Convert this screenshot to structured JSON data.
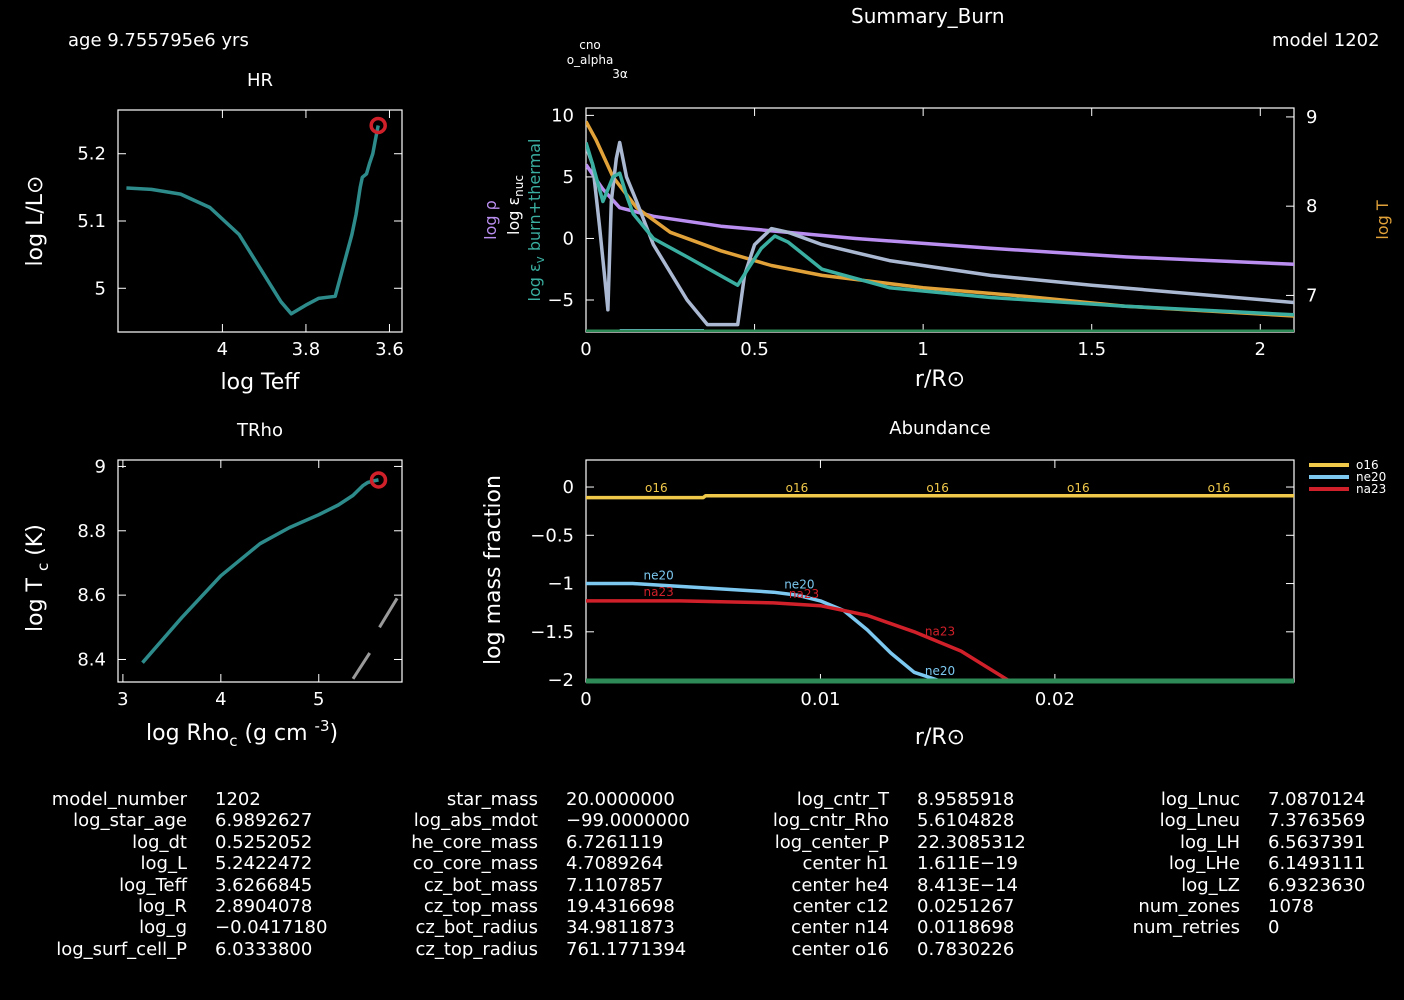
{
  "header": {
    "title": "Summary_Burn",
    "age_label": "age 9.755795e6 yrs",
    "model_label": "model 1202"
  },
  "colors": {
    "background": "#000000",
    "teal": "#2e8b8b",
    "teal_light": "#3aaea0",
    "violet": "#b98ef0",
    "orange": "#e2a23a",
    "lightblue": "#aab8d2",
    "skyblue": "#7cc8f0",
    "green": "#2e8b57",
    "red": "#d0202a",
    "yellow": "#f0c84a",
    "marker_red": "#d0202a",
    "grey": "#9a9a9a"
  },
  "chart_data": [
    {
      "id": "hr",
      "type": "line",
      "title": "HR",
      "xlabel": "log Teff",
      "ylabel": "log L/L⊙",
      "xlim": [
        4.25,
        3.57
      ],
      "ylim": [
        4.935,
        5.265
      ],
      "x_reversed": true,
      "xticks": [
        4,
        3.8,
        3.6
      ],
      "xtick_labels": [
        "4",
        "3.8",
        "3.6"
      ],
      "yticks": [
        5,
        5.1,
        5.2
      ],
      "ytick_labels": [
        "5",
        "5.1",
        "5.2"
      ],
      "series": [
        {
          "color": "#2e8b8b",
          "x": [
            4.23,
            4.17,
            4.1,
            4.03,
            3.96,
            3.9,
            3.86,
            3.835,
            3.8,
            3.77,
            3.73,
            3.69,
            3.68,
            3.67,
            3.665,
            3.655,
            3.648,
            3.64,
            3.634,
            3.627
          ],
          "y": [
            5.149,
            5.147,
            5.14,
            5.12,
            5.08,
            5.02,
            4.98,
            4.962,
            4.975,
            4.985,
            4.988,
            5.08,
            5.11,
            5.15,
            5.165,
            5.17,
            5.185,
            5.2,
            5.22,
            5.242
          ]
        }
      ],
      "marker": {
        "x": 3.627,
        "y": 5.242,
        "color": "#d0202a"
      }
    },
    {
      "id": "trho",
      "type": "line",
      "title": "TRho",
      "xlabel": "log Rho",
      "xlabel_sub": "c",
      "xlabel_units": "(g cm",
      "xlabel_sup": "-3",
      "xlabel_close": ")",
      "ylabel": "log T",
      "ylabel_sub": "c",
      "ylabel_units": "(K)",
      "xlim": [
        2.95,
        5.85
      ],
      "ylim": [
        8.33,
        9.02
      ],
      "xticks": [
        3,
        4,
        5
      ],
      "xtick_labels": [
        "3",
        "4",
        "5"
      ],
      "yticks": [
        8.4,
        8.6,
        8.8,
        9
      ],
      "ytick_labels": [
        "8.4",
        "8.6",
        "8.8",
        "9"
      ],
      "series": [
        {
          "color": "#2e8b8b",
          "x": [
            3.2,
            3.6,
            4.0,
            4.4,
            4.7,
            5.0,
            5.2,
            5.35,
            5.45,
            5.5,
            5.56,
            5.61
          ],
          "y": [
            8.39,
            8.53,
            8.66,
            8.76,
            8.81,
            8.85,
            8.88,
            8.91,
            8.94,
            8.95,
            8.955,
            8.958
          ]
        }
      ],
      "grey_lines": [
        {
          "x": [
            5.35,
            5.52
          ],
          "y": [
            8.34,
            8.42
          ]
        },
        {
          "x": [
            5.62,
            5.8
          ],
          "y": [
            8.5,
            8.59
          ]
        }
      ],
      "marker": {
        "x": 5.61,
        "y": 8.958,
        "color": "#d0202a"
      }
    },
    {
      "id": "summary_burn",
      "type": "line",
      "title": "Summary_Burn",
      "xlabel": "r/R⊙",
      "ylabel_left_rho": "log ρ",
      "ylabel_left_nuc": "log ε",
      "ylabel_left_nuc_sub": "nuc",
      "ylabel_left_eps": "log ε",
      "ylabel_left_eps_sub": "v",
      "ylabel_left_eps_tail": " burn+thermal",
      "ylabel_right": "log T",
      "xlim": [
        0,
        2.1
      ],
      "ylim": [
        -7.6,
        10.6
      ],
      "ylim_right": [
        6.59,
        9.1
      ],
      "xticks": [
        0,
        0.5,
        1,
        1.5,
        2
      ],
      "xtick_labels": [
        "0",
        "0.5",
        "1",
        "1.5",
        "2"
      ],
      "yticks": [
        -5,
        0,
        5,
        10
      ],
      "ytick_labels": [
        "−5",
        "0",
        "5",
        "10"
      ],
      "yticks_right": [
        7,
        8,
        9
      ],
      "ytick_right_labels": [
        "7",
        "8",
        "9"
      ],
      "legend_labels": [
        "cno",
        "o_alpha",
        "3α"
      ],
      "series": [
        {
          "name": "log ρ",
          "color": "#b98ef0",
          "x": [
            0,
            0.05,
            0.1,
            0.2,
            0.4,
            0.8,
            1.2,
            1.6,
            2.1
          ],
          "y": [
            6,
            4,
            2.5,
            1.8,
            1,
            0,
            -0.8,
            -1.5,
            -2.1
          ]
        },
        {
          "name": "log T",
          "color": "#e2a23a",
          "x": [
            0,
            0.03,
            0.08,
            0.15,
            0.25,
            0.4,
            0.55,
            0.7,
            1.0,
            1.3,
            1.6,
            2.1
          ],
          "y": [
            9.5,
            8,
            5,
            2.5,
            0.5,
            -1,
            -2.2,
            -3,
            -4,
            -4.7,
            -5.5,
            -6.3
          ]
        },
        {
          "name": "log ε_nuc",
          "color": "#aab8d2",
          "x": [
            0,
            0.02,
            0.04,
            0.055,
            0.065,
            0.075,
            0.09,
            0.1,
            0.12,
            0.15,
            0.2,
            0.3,
            0.36,
            0.45,
            0.47,
            0.5,
            0.55,
            0.6,
            0.7,
            0.9,
            1.2,
            1.5,
            2.1
          ],
          "y": [
            7.5,
            6,
            1,
            -3,
            -5.8,
            3,
            6.5,
            7.8,
            5,
            3,
            -0.5,
            -5,
            -7,
            -7,
            -3,
            -0.5,
            0.8,
            0.5,
            -0.5,
            -1.8,
            -3,
            -3.8,
            -5.2
          ]
        },
        {
          "name": "log ε burn+thermal",
          "color": "#3aaea0",
          "x": [
            0,
            0.02,
            0.05,
            0.08,
            0.1,
            0.12,
            0.14,
            0.2,
            0.3,
            0.45,
            0.48,
            0.52,
            0.56,
            0.6,
            0.7,
            0.9,
            1.2,
            1.6,
            2.1
          ],
          "y": [
            7.8,
            6,
            3,
            5,
            5.3,
            3.5,
            2,
            0,
            -1.5,
            -3.8,
            -2.5,
            -0.8,
            0.2,
            -0.3,
            -2.5,
            -4,
            -4.8,
            -5.5,
            -6.2
          ]
        },
        {
          "name": "cno",
          "color": "#7cc8f0",
          "x": [
            0.1,
            0.35
          ],
          "y": [
            -7.5,
            -7.5
          ]
        },
        {
          "name": "zero",
          "color": "#2e8b57",
          "x": [
            0,
            2.1
          ],
          "y": [
            -7.6,
            -7.6
          ]
        }
      ]
    },
    {
      "id": "abundance",
      "type": "line",
      "title": "Abundance",
      "xlabel": "r/R⊙",
      "ylabel": "log mass fraction",
      "xlim": [
        0,
        0.0302
      ],
      "ylim": [
        -2.02,
        0.28
      ],
      "xticks": [
        0,
        0.01,
        0.02
      ],
      "xtick_labels": [
        "0",
        "0.01",
        "0.02"
      ],
      "yticks": [
        -2,
        -1.5,
        -1,
        -0.5,
        0
      ],
      "ytick_labels": [
        "−2",
        "−1.5",
        "−1",
        "−0.5",
        "0"
      ],
      "legend": [
        "o16",
        "ne20",
        "na23"
      ],
      "inline_labels": {
        "o16": [
          "o16",
          "o16",
          "o16",
          "o16",
          "o16"
        ],
        "ne20": [
          "ne20",
          "ne20",
          "ne20"
        ],
        "na23": [
          "na23",
          "na23",
          "na23"
        ]
      },
      "series": [
        {
          "name": "o16",
          "color": "#f0c84a",
          "x": [
            0,
            0.005,
            0.0051,
            0.0302
          ],
          "y": [
            -0.11,
            -0.11,
            -0.09,
            -0.09
          ]
        },
        {
          "name": "ne20",
          "color": "#7cc8f0",
          "x": [
            0,
            0.002,
            0.004,
            0.006,
            0.008,
            0.009,
            0.01,
            0.011,
            0.012,
            0.013,
            0.014,
            0.015
          ],
          "y": [
            -1.0,
            -1.0,
            -1.03,
            -1.06,
            -1.09,
            -1.12,
            -1.18,
            -1.28,
            -1.48,
            -1.72,
            -1.92,
            -2.0
          ]
        },
        {
          "name": "na23",
          "color": "#d0202a",
          "x": [
            0,
            0.002,
            0.004,
            0.006,
            0.008,
            0.01,
            0.012,
            0.014,
            0.016,
            0.017,
            0.018
          ],
          "y": [
            -1.18,
            -1.18,
            -1.18,
            -1.19,
            -1.2,
            -1.23,
            -1.33,
            -1.5,
            -1.7,
            -1.85,
            -2.0
          ]
        },
        {
          "name": "zero",
          "color": "#2e8b57",
          "x": [
            0,
            0.0302
          ],
          "y": [
            -2.01,
            -2.01
          ]
        }
      ]
    }
  ],
  "table": {
    "col1": [
      {
        "k": "model_number",
        "v": "1202"
      },
      {
        "k": "log_star_age",
        "v": "6.9892627"
      },
      {
        "k": "log_dt",
        "v": "0.5252052"
      },
      {
        "k": "log_L",
        "v": "5.2422472"
      },
      {
        "k": "log_Teff",
        "v": "3.6266845"
      },
      {
        "k": "log_R",
        "v": "2.8904078"
      },
      {
        "k": "log_g",
        "v": "−0.0417180"
      },
      {
        "k": "log_surf_cell_P",
        "v": "6.0333800"
      }
    ],
    "col2": [
      {
        "k": "star_mass",
        "v": "20.0000000"
      },
      {
        "k": "log_abs_mdot",
        "v": "−99.0000000"
      },
      {
        "k": "he_core_mass",
        "v": "6.7261119"
      },
      {
        "k": "co_core_mass",
        "v": "4.7089264"
      },
      {
        "k": "cz_bot_mass",
        "v": "7.1107857"
      },
      {
        "k": "cz_top_mass",
        "v": "19.4316698"
      },
      {
        "k": "cz_bot_radius",
        "v": "34.9811873"
      },
      {
        "k": "cz_top_radius",
        "v": "761.1771394"
      }
    ],
    "col3": [
      {
        "k": "log_cntr_T",
        "v": "8.9585918"
      },
      {
        "k": "log_cntr_Rho",
        "v": "5.6104828"
      },
      {
        "k": "log_center_P",
        "v": "22.3085312"
      },
      {
        "k": "center h1",
        "v": "1.611E−19"
      },
      {
        "k": "center he4",
        "v": "8.413E−14"
      },
      {
        "k": "center c12",
        "v": "0.0251267"
      },
      {
        "k": "center n14",
        "v": "0.0118698"
      },
      {
        "k": "center o16",
        "v": "0.7830226"
      }
    ],
    "col4": [
      {
        "k": "log_Lnuc",
        "v": "7.0870124"
      },
      {
        "k": "log_Lneu",
        "v": "7.3763569"
      },
      {
        "k": "log_LH",
        "v": "6.5637391"
      },
      {
        "k": "log_LHe",
        "v": "6.1493111"
      },
      {
        "k": "log_LZ",
        "v": "6.9323630"
      },
      {
        "k": "num_zones",
        "v": "1078"
      },
      {
        "k": "num_retries",
        "v": "0"
      }
    ]
  }
}
